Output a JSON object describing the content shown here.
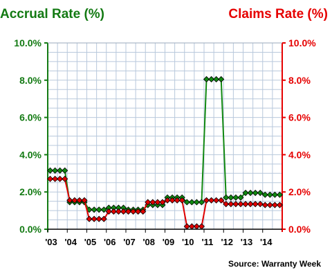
{
  "chart_data": {
    "type": "line",
    "left_axis_title": "Accrual Rate (%)",
    "right_axis_title": "Claims Rate (%)",
    "source": "Source: Warranty Week",
    "x_tick_labels": [
      "'03",
      "'04",
      "'05",
      "'06",
      "'07",
      "'08",
      "'09",
      "'10",
      "'11",
      "'12",
      "'13",
      "'14"
    ],
    "y_tick_labels": [
      "0.0%",
      "2.0%",
      "4.0%",
      "6.0%",
      "8.0%",
      "10.0%"
    ],
    "ylim": [
      0,
      10
    ],
    "grid": true,
    "quarters_per_year": 4,
    "series": [
      {
        "color": "#118811",
        "axis": "left",
        "values": [
          3.15,
          3.15,
          3.15,
          3.15,
          1.45,
          1.45,
          1.45,
          1.45,
          1.05,
          1.05,
          1.05,
          1.05,
          1.15,
          1.15,
          1.15,
          1.15,
          1.05,
          1.05,
          1.05,
          1.05,
          1.3,
          1.3,
          1.3,
          1.3,
          1.7,
          1.7,
          1.7,
          1.7,
          1.45,
          1.45,
          1.45,
          1.45,
          8.05,
          8.05,
          8.05,
          8.05,
          1.7,
          1.7,
          1.7,
          1.7,
          1.95,
          1.95,
          1.95,
          1.95,
          1.85,
          1.85,
          1.85,
          1.85
        ]
      },
      {
        "color": "#e00000",
        "axis": "right",
        "values": [
          2.7,
          2.7,
          2.7,
          2.7,
          1.55,
          1.55,
          1.55,
          1.55,
          0.55,
          0.55,
          0.55,
          0.55,
          0.95,
          0.95,
          0.95,
          0.95,
          0.95,
          0.95,
          0.95,
          0.95,
          1.45,
          1.45,
          1.45,
          1.45,
          1.55,
          1.55,
          1.55,
          1.55,
          0.15,
          0.15,
          0.15,
          0.15,
          1.55,
          1.55,
          1.55,
          1.55,
          1.35,
          1.35,
          1.35,
          1.35,
          1.35,
          1.35,
          1.35,
          1.35,
          1.3,
          1.3,
          1.3,
          1.3
        ]
      }
    ],
    "colors": {
      "left_axis": "#137a13",
      "right_axis": "#e60000",
      "grid": "#b8c8dc"
    }
  }
}
